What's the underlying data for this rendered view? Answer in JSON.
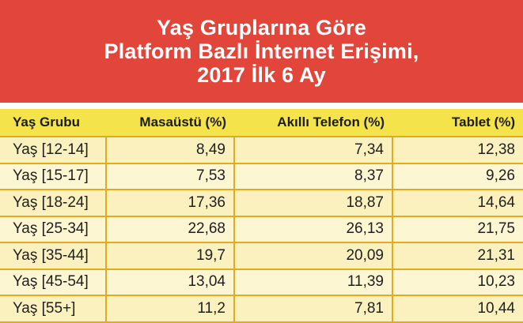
{
  "title_lines": [
    "Yaş Gruplarına Göre",
    "Platform Bazlı İnternet Erişimi,",
    "2017 İlk 6 Ay"
  ],
  "colors": {
    "banner": "#e2463b",
    "header_row": "#f4e34a",
    "row_fill": "#fbf1bf",
    "grid": "#e5a91e"
  },
  "table": {
    "headers": [
      "Yaş Grubu",
      "Masaüstü (%)",
      "Akıllı Telefon (%)",
      "Tablet (%)"
    ],
    "rows": [
      [
        "Yaş [12-14]",
        "8,49",
        "7,34",
        "12,38"
      ],
      [
        "Yaş [15-17]",
        "7,53",
        "8,37",
        "9,26"
      ],
      [
        "Yaş [18-24]",
        "17,36",
        "18,87",
        "14,64"
      ],
      [
        "Yaş [25-34]",
        "22,68",
        "26,13",
        "21,75"
      ],
      [
        "Yaş [35-44]",
        "19,7",
        "20,09",
        "21,31"
      ],
      [
        "Yaş [45-54]",
        "13,04",
        "11,39",
        "10,23"
      ],
      [
        "Yaş [55+]",
        "11,2",
        "7,81",
        "10,44"
      ]
    ]
  }
}
